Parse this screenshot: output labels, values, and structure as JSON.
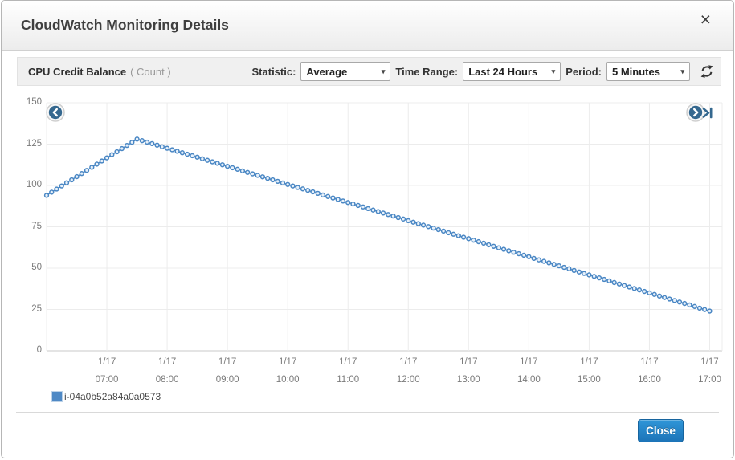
{
  "modal": {
    "title": "CloudWatch Monitoring Details"
  },
  "icons": {
    "close_glyph": "×",
    "dropdown_arrow_glyph": "▾"
  },
  "toolbar": {
    "metric_name": "CPU Credit Balance",
    "metric_unit": "( Count )",
    "statistic_label": "Statistic:",
    "statistic_value": "Average",
    "time_range_label": "Time Range:",
    "time_range_value": "Last 24 Hours",
    "period_label": "Period:",
    "period_value": "5 Minutes"
  },
  "chart_data": {
    "type": "line",
    "title": "CPU Credit Balance",
    "unit": "Count",
    "x_start": "1/17 06:00",
    "x_end": "1/17 17:00",
    "interval_minutes": 5,
    "ylim": [
      0,
      150
    ],
    "y_ticks": [
      0,
      25,
      50,
      75,
      100,
      125,
      150
    ],
    "x_ticks": [
      {
        "date": "1/17",
        "time": "07:00"
      },
      {
        "date": "1/17",
        "time": "08:00"
      },
      {
        "date": "1/17",
        "time": "09:00"
      },
      {
        "date": "1/17",
        "time": "10:00"
      },
      {
        "date": "1/17",
        "time": "11:00"
      },
      {
        "date": "1/17",
        "time": "12:00"
      },
      {
        "date": "1/17",
        "time": "13:00"
      },
      {
        "date": "1/17",
        "time": "14:00"
      },
      {
        "date": "1/17",
        "time": "15:00"
      },
      {
        "date": "1/17",
        "time": "16:00"
      },
      {
        "date": "1/17",
        "time": "17:00"
      }
    ],
    "grid": true,
    "legend_position": "bottom-left",
    "series": [
      {
        "name": "i-04a0b52a84a0a0573",
        "color": "#4a87c4",
        "point_fill": "#e8f1fa",
        "values": [
          94,
          95.9,
          97.8,
          99.7,
          101.6,
          103.4,
          105.3,
          107.2,
          109.1,
          111,
          112.9,
          114.8,
          116.7,
          118.6,
          120.4,
          122.3,
          124.2,
          126.1,
          128,
          127.1,
          126.2,
          125.3,
          124.4,
          123.4,
          122.5,
          121.6,
          120.7,
          119.8,
          118.9,
          118,
          117.1,
          116.1,
          115.2,
          114.3,
          113.4,
          112.5,
          111.6,
          110.7,
          109.8,
          108.8,
          107.9,
          107,
          106.1,
          105.2,
          104.3,
          103.4,
          102.5,
          101.5,
          100.6,
          99.7,
          98.8,
          97.9,
          97,
          96.1,
          95.2,
          94.2,
          93.3,
          92.4,
          91.5,
          90.6,
          89.7,
          88.8,
          87.9,
          87,
          86,
          85.1,
          84.2,
          83.3,
          82.4,
          81.5,
          80.6,
          79.7,
          78.7,
          77.8,
          76.9,
          76,
          75.1,
          74.2,
          73.3,
          72.4,
          71.4,
          70.5,
          69.6,
          68.7,
          67.8,
          66.9,
          66,
          65.1,
          64.1,
          63.2,
          62.3,
          61.4,
          60.5,
          59.6,
          58.7,
          57.8,
          56.9,
          55.9,
          55,
          54.1,
          53.2,
          52.3,
          51.4,
          50.5,
          49.6,
          48.6,
          47.7,
          46.8,
          45.9,
          45,
          44.1,
          43.2,
          42.3,
          41.3,
          40.4,
          39.5,
          38.6,
          37.7,
          36.8,
          35.9,
          35,
          34.1,
          33.1,
          32.2,
          31.3,
          30.4,
          29.5,
          28.6,
          27.7,
          26.8,
          25.8,
          24.9,
          24
        ]
      }
    ]
  },
  "footer": {
    "close_label": "Close"
  }
}
